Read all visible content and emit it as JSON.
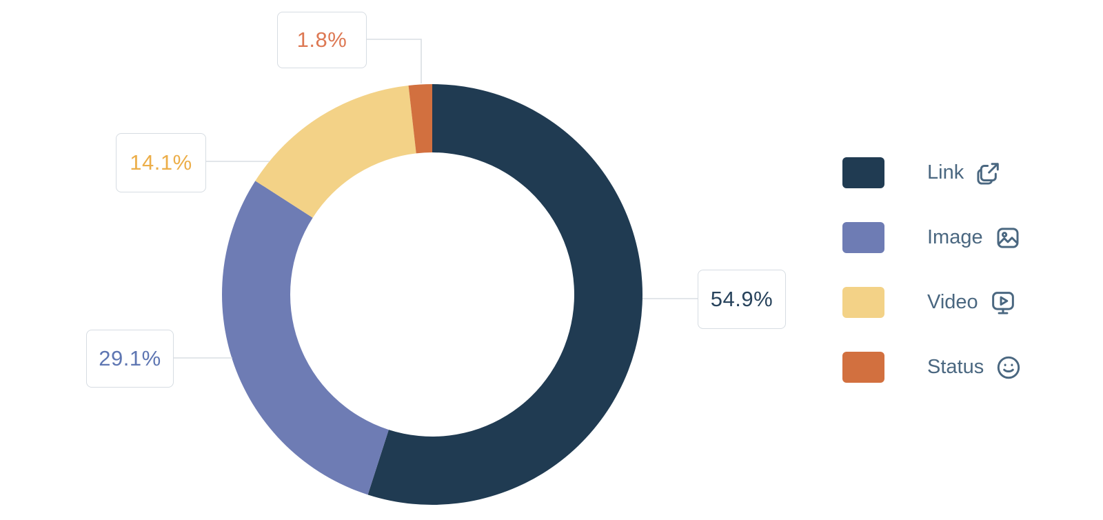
{
  "chart_data": {
    "type": "pie",
    "subtype": "donut",
    "title": "",
    "legend_position": "right",
    "start_angle_deg": 0,
    "direction": "clockwise",
    "slices": [
      {
        "label": "Link",
        "value": 54.9,
        "pct_label": "54.9%",
        "color": "#203B52",
        "label_color": "#28435C",
        "icon": "external-link-icon"
      },
      {
        "label": "Image",
        "value": 29.1,
        "pct_label": "29.1%",
        "color": "#6E7CB4",
        "label_color": "#5E76B2",
        "icon": "image-icon"
      },
      {
        "label": "Video",
        "value": 14.1,
        "pct_label": "14.1%",
        "color": "#F3D287",
        "label_color": "#ECAE49",
        "icon": "video-icon"
      },
      {
        "label": "Status",
        "value": 1.8,
        "pct_label": "1.8%",
        "color": "#D2703F",
        "label_color": "#DD7853",
        "icon": "smiley-icon"
      }
    ]
  },
  "styles": {
    "background": "#FFFFFF",
    "leader_line": "#D8DDE3",
    "box_border": "#D6DCE2",
    "legend_text": "#4A6780",
    "icon_color": "#4A6780"
  }
}
